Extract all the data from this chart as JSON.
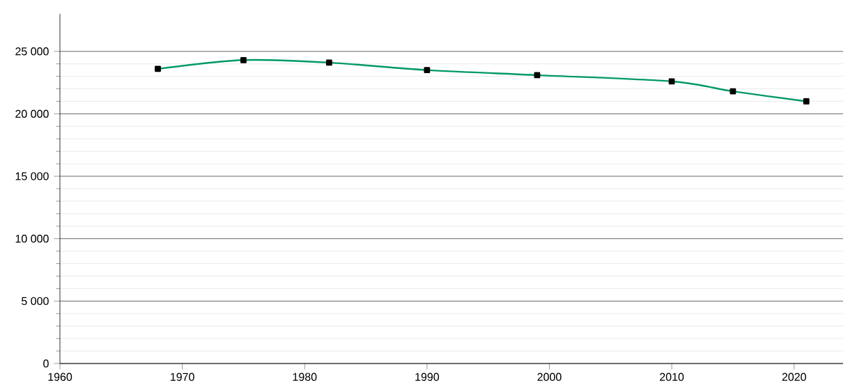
{
  "chart_data": {
    "type": "line",
    "x": [
      1968,
      1975,
      1982,
      1990,
      1999,
      2010,
      2015,
      2021
    ],
    "series": [
      {
        "color": "#009966",
        "values": [
          23600,
          24300,
          24100,
          23500,
          23100,
          22600,
          21800,
          21000
        ]
      }
    ],
    "xlim": [
      1960,
      2024
    ],
    "ylim": [
      0,
      28000
    ],
    "xticks": [
      1960,
      1970,
      1980,
      1990,
      2000,
      2010,
      2020
    ],
    "yticks": [
      0,
      {
        "value": 5000,
        "label": "5 000"
      },
      {
        "value": 10000,
        "label": "10 000"
      },
      {
        "value": 15000,
        "label": "15 000"
      },
      {
        "value": 20000,
        "label": "20 000"
      },
      {
        "value": 25000,
        "label": "25 000"
      }
    ],
    "grid": "y",
    "marker": "square",
    "line_style": "solid"
  }
}
